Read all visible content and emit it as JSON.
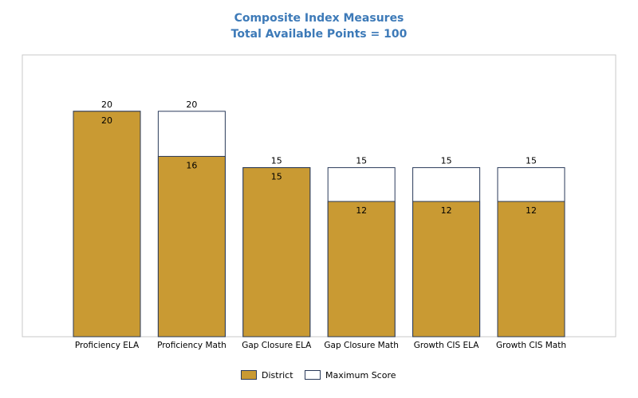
{
  "chart_data": {
    "type": "bar",
    "title": "Composite Index Measures",
    "subtitle": "Total Available Points = 100",
    "categories": [
      "Proficiency ELA",
      "Proficiency Math",
      "Gap Closure ELA",
      "Gap Closure Math",
      "Growth CIS ELA",
      "Growth CIS Math"
    ],
    "series": [
      {
        "name": "District",
        "values": [
          20,
          16,
          15,
          12,
          12,
          12
        ],
        "color": "#c99a33"
      },
      {
        "name": "Maximum Score",
        "values": [
          20,
          20,
          15,
          15,
          15,
          15
        ],
        "color": "#ffffff"
      }
    ],
    "ylim": [
      0,
      25
    ],
    "grid": false,
    "legend_position": "bottom-center",
    "colors": {
      "title": "#3d7ab8",
      "bar_border": "#2a3a5a",
      "frame": "#c8c8c8"
    }
  }
}
